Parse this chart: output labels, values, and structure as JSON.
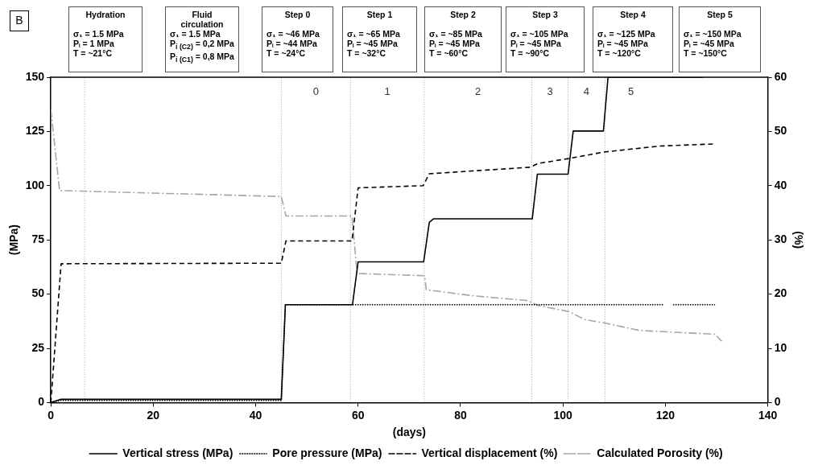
{
  "chart_data": {
    "type": "line",
    "xlabel": "(days)",
    "ylabel": "(MPa)",
    "y2label": "(%)",
    "xlim": [
      0,
      140
    ],
    "xticks": [
      0,
      20,
      40,
      60,
      80,
      100,
      120,
      140
    ],
    "ylim": [
      0,
      150
    ],
    "yticks": [
      0,
      25,
      50,
      75,
      100,
      125,
      150
    ],
    "y2lim": [
      0,
      60
    ],
    "y2ticks": [
      0,
      10,
      20,
      30,
      40,
      50,
      60
    ],
    "grid": false,
    "legend": "bottom",
    "marker": "none",
    "series": [
      {
        "name": "Vertical stress (MPa)",
        "color": "#000000",
        "line_style": "solid",
        "x": [
          0,
          2,
          45,
          45.8,
          58.9,
          60,
          72.8,
          73.9,
          74.7,
          94,
          95,
          101,
          102,
          107.9,
          108.8,
          127.3
        ],
        "values": [
          0,
          1.5,
          1.5,
          45.1,
          45.1,
          64.9,
          64.9,
          83.1,
          84.7,
          84.7,
          105.3,
          105.3,
          125.2,
          125.2,
          150,
          150
        ]
      },
      {
        "name": "Pore pressure (MPa)",
        "color": "#000000",
        "line_style": "dotted",
        "x": [
          0,
          2,
          45,
          45.8,
          119.6,
          119.7,
          121.5,
          129.7
        ],
        "values": [
          0,
          1,
          1,
          45.1,
          45.1,
          null,
          45.1,
          45.1
        ]
      },
      {
        "name": "Vertical displacement (%)",
        "color": "#000000",
        "line_style": "dashed",
        "axis": "y2",
        "x": [
          0,
          2,
          45,
          45.9,
          58.8,
          60,
          72.7,
          73.9,
          93.6,
          95.2,
          101.1,
          108,
          118.8,
          129.5
        ],
        "values": [
          0,
          25.6,
          25.7,
          29.8,
          29.8,
          39.6,
          40.0,
          42.2,
          43.4,
          44.1,
          45.0,
          46.2,
          47.3,
          47.7
        ]
      },
      {
        "name": "Calculated Porosity (%)",
        "color": "#a6a6a6",
        "line_style": "dashdot",
        "axis": "y2",
        "x": [
          0,
          1.7,
          45,
          45.9,
          58.8,
          59.8,
          73,
          73.3,
          82.4,
          93.1,
          95.2,
          101.1,
          104.3,
          108,
          114.9,
          129.7,
          131
        ],
        "values": [
          54.1,
          39.1,
          38.0,
          34.4,
          34.4,
          23.8,
          23.4,
          20.8,
          19.7,
          18.8,
          17.9,
          16.8,
          15.3,
          14.7,
          13.3,
          12.6,
          11.3
        ]
      }
    ],
    "ref_lines": [
      {
        "axis": "x",
        "value": 6.6,
        "color": "#bfbfbf",
        "line_style": "dotted"
      },
      {
        "axis": "x",
        "value": 45,
        "color": "#bfbfbf",
        "line_style": "dotted"
      },
      {
        "axis": "x",
        "value": 58.5,
        "color": "#bfbfbf",
        "line_style": "dotted"
      },
      {
        "axis": "x",
        "value": 72.9,
        "color": "#bfbfbf",
        "line_style": "dotted"
      },
      {
        "axis": "x",
        "value": 93.9,
        "color": "#bfbfbf",
        "line_style": "dotted"
      },
      {
        "axis": "x",
        "value": 101,
        "color": "#bfbfbf",
        "line_style": "dotted"
      },
      {
        "axis": "x",
        "value": 108.2,
        "color": "#bfbfbf",
        "line_style": "dotted"
      }
    ],
    "annotations": [
      "B",
      "Hydration\n\nσ₁ = 1.5 MPa\nPᵢ = 1 MPa\nT = ~21°C",
      "Fluid\ncirculation\nσ₁ = 1.5 MPa\nP$_{i (C2)}$ = 0,2 MPa\nP$_{i (C1)}$ = 0,8 MPa",
      "Step 0\n\nσ₁ = ~46 MPa\nPᵢ = ~44 MPa\nT = ~24°C",
      "Step 1\n\nσ₁ = ~65 MPa\nPᵢ = ~45 MPa\nT = ~32°C",
      "Step 2\n\nσ₁ = ~85 MPa\nPᵢ = ~45 MPa\nT = ~60°C",
      "Step 3\n\nσ₁ = ~105 MPa\nPᵢ = ~45 MPa\nT = ~90°C",
      "Step 4\n\nσ₁ = ~125 MPa\nPᵢ = ~45 MPa\nT = ~120°C",
      "Step 5\n\nσ₁ = ~150 MPa\nPᵢ = ~45 MPa\nT = ~150°C",
      "0",
      "1",
      "2",
      "3",
      "4",
      "5"
    ]
  }
}
